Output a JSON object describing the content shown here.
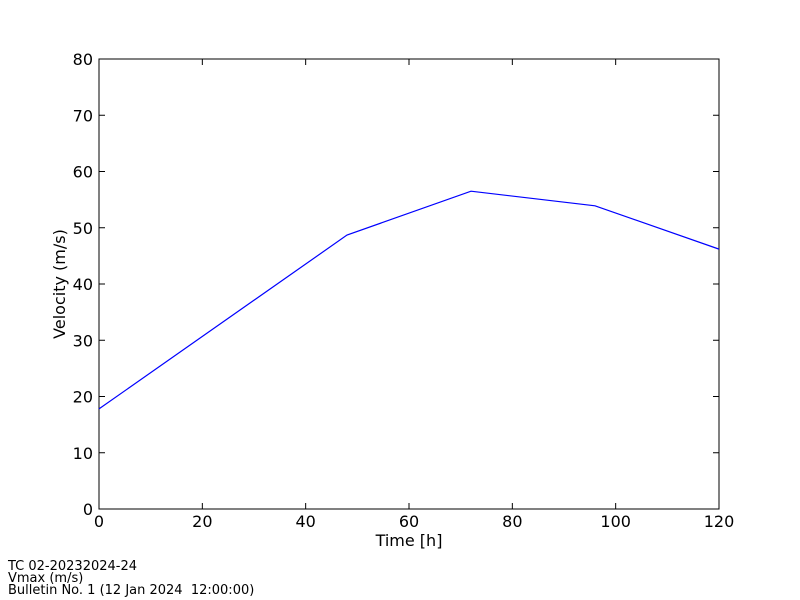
{
  "chart_data": {
    "type": "line",
    "x_label": "Time [h]",
    "y_label": "Velocity (m/s)",
    "x": [
      0,
      48,
      72,
      96,
      120
    ],
    "series": [
      {
        "color": "#0000ff",
        "values": [
          17.8,
          48.7,
          56.5,
          53.9,
          46.2
        ]
      }
    ],
    "xlim": [
      0,
      120
    ],
    "ylim": [
      0,
      80
    ],
    "xticks": [
      0,
      20,
      40,
      60,
      80,
      100,
      120
    ],
    "yticks": [
      0,
      10,
      20,
      30,
      40,
      50,
      60,
      70,
      80
    ],
    "grid": false,
    "annotations": [
      "TC 02-20232024-24",
      "Vmax (m/s)",
      "Bulletin No. 1 (12 Jan 2024  12:00:00)"
    ]
  }
}
